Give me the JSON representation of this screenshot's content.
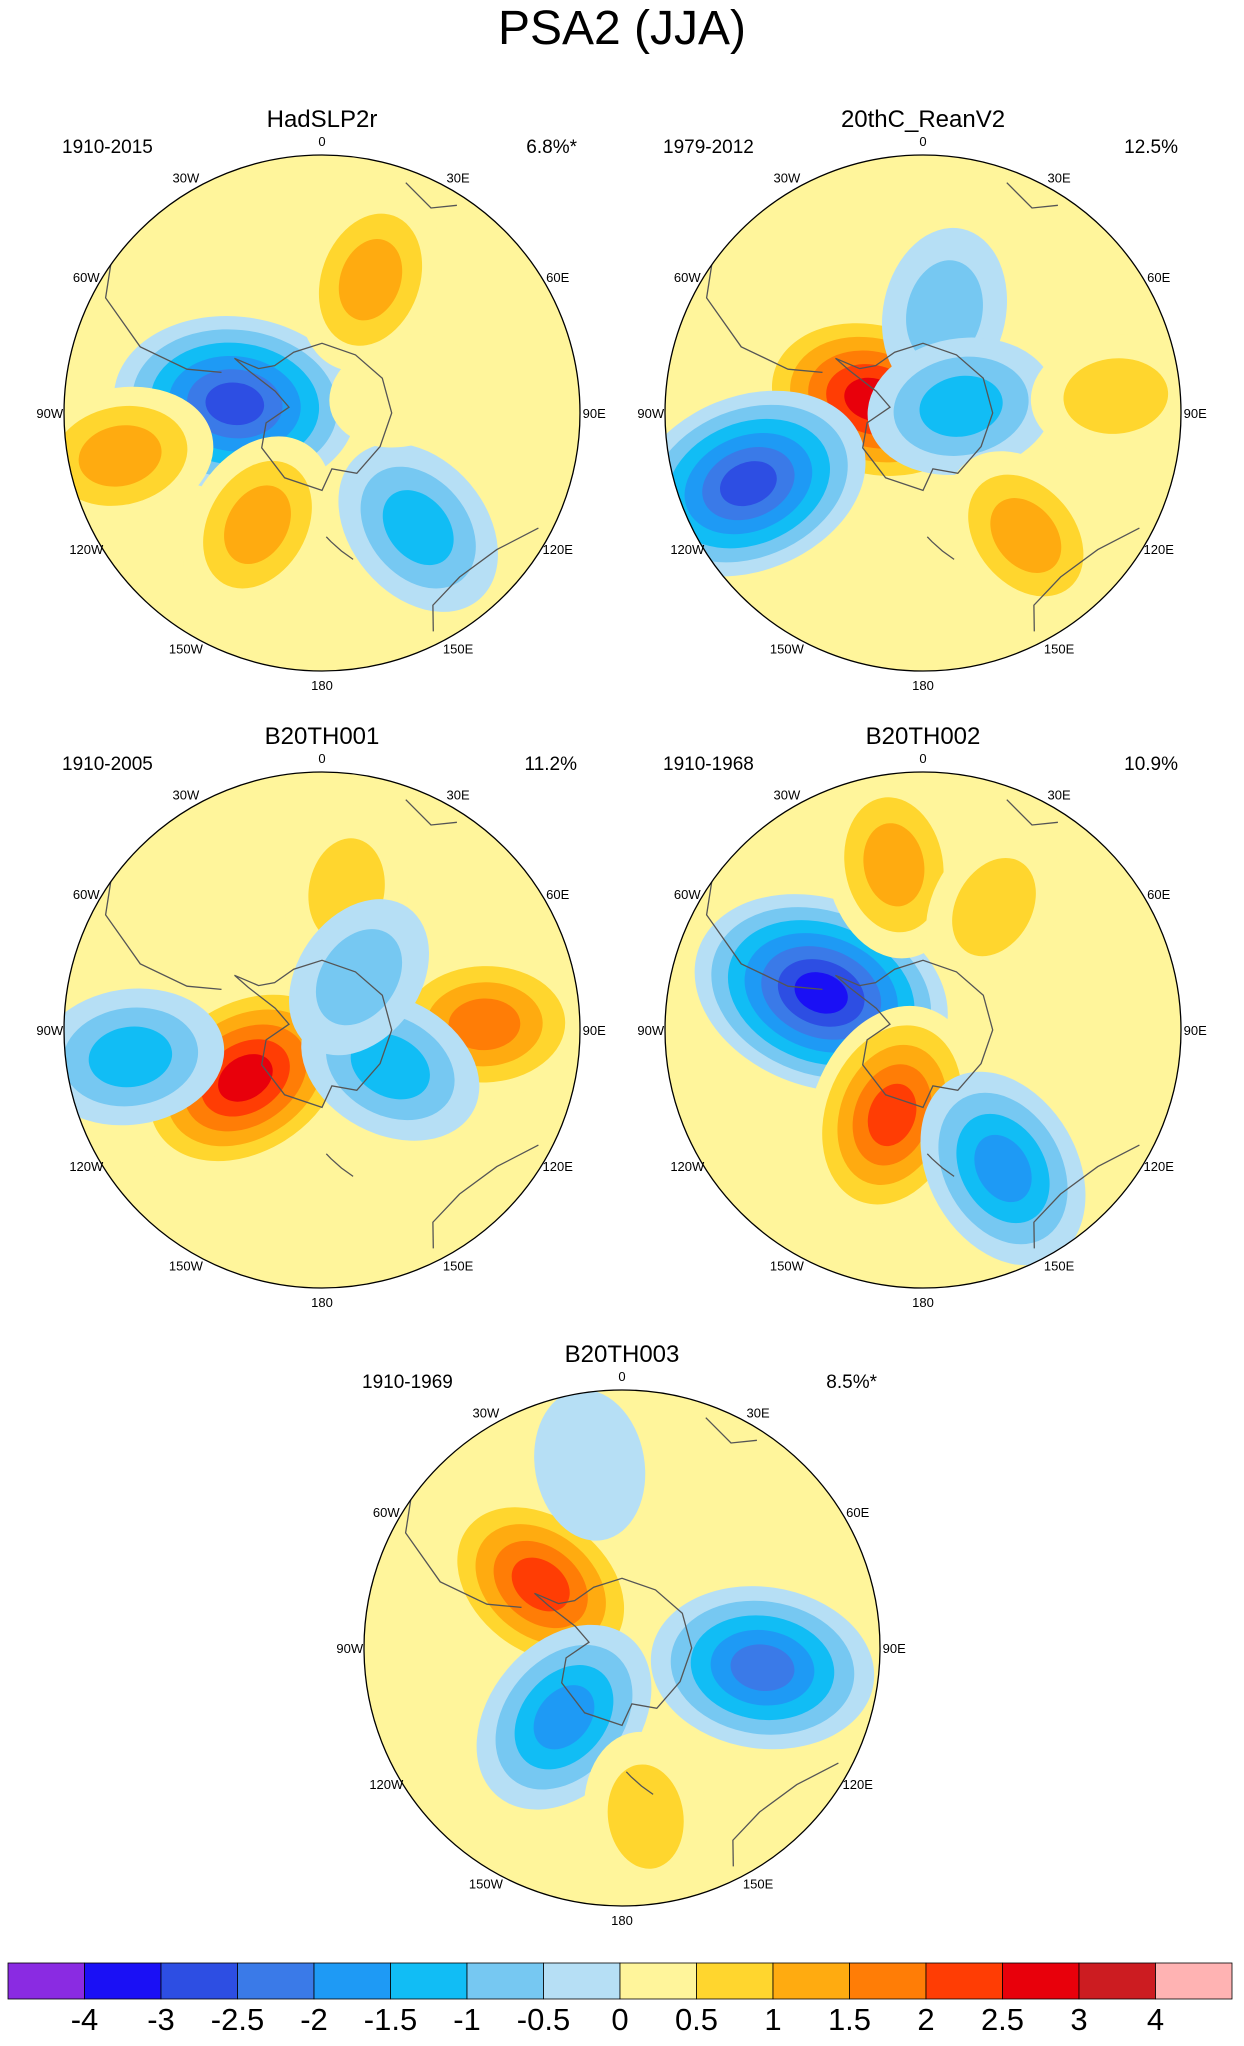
{
  "chart_data": {
    "type": "heatmap",
    "projection": "south polar stereographic",
    "title": "PSA2 (JJA)",
    "longitude_labels": [
      "0",
      "30E",
      "60E",
      "90E",
      "120E",
      "150E",
      "180",
      "150W",
      "120W",
      "90W",
      "60W",
      "30W"
    ],
    "panels": [
      {
        "title": "HadSLP2r",
        "period": "1910-2015",
        "variance": "6.8%*",
        "anomalies": [
          {
            "lon": -84,
            "colat": 0.34,
            "value": -3.0
          },
          {
            "lon": 20,
            "colat": 0.55,
            "value": 1.5
          },
          {
            "lon": -102,
            "colat": 0.8,
            "value": 1.5
          },
          {
            "lon": -150,
            "colat": 0.5,
            "value": 1.5
          },
          {
            "lon": 140,
            "colat": 0.58,
            "value": -1.5
          },
          {
            "lon": 75,
            "colat": 0.33,
            "value": 0.5
          }
        ]
      },
      {
        "title": "20thC_ReanV2",
        "period": "1979-2012",
        "variance": "12.5%",
        "anomalies": [
          {
            "lon": -75,
            "colat": 0.2,
            "value": 3.0
          },
          {
            "lon": -112,
            "colat": 0.73,
            "value": -3.0
          },
          {
            "lon": 12,
            "colat": 0.4,
            "value": -1.0
          },
          {
            "lon": 80,
            "colat": 0.15,
            "value": -1.5
          },
          {
            "lon": 85,
            "colat": 0.75,
            "value": 1.0
          },
          {
            "lon": 140,
            "colat": 0.62,
            "value": 1.5
          }
        ]
      },
      {
        "title": "B20TH001",
        "period": "1910-2005",
        "variance": "11.2%",
        "anomalies": [
          {
            "lon": -122,
            "colat": 0.35,
            "value": 3.0
          },
          {
            "lon": -98,
            "colat": 0.75,
            "value": -1.5
          },
          {
            "lon": 88,
            "colat": 0.63,
            "value": 2.0
          },
          {
            "lon": 118,
            "colat": 0.3,
            "value": -1.5
          },
          {
            "lon": 10,
            "colat": 0.55,
            "value": 1.0
          },
          {
            "lon": 35,
            "colat": 0.25,
            "value": -1.0
          }
        ]
      },
      {
        "title": "B20TH002",
        "period": "1910-1968",
        "variance": "10.9%",
        "anomalies": [
          {
            "lon": -70,
            "colat": 0.42,
            "value": -3.5
          },
          {
            "lon": -160,
            "colat": 0.35,
            "value": 2.5
          },
          {
            "lon": 150,
            "colat": 0.62,
            "value": -2.0
          },
          {
            "lon": -10,
            "colat": 0.65,
            "value": 1.5
          },
          {
            "lon": 30,
            "colat": 0.55,
            "value": 1.0
          }
        ]
      },
      {
        "title": "B20TH003",
        "period": "1910-1969",
        "variance": "8.5%*",
        "anomalies": [
          {
            "lon": -52,
            "colat": 0.4,
            "value": 2.5
          },
          {
            "lon": -140,
            "colat": 0.35,
            "value": -2.0
          },
          {
            "lon": 98,
            "colat": 0.55,
            "value": -2.5
          },
          {
            "lon": 172,
            "colat": 0.66,
            "value": 1.0
          },
          {
            "lon": -10,
            "colat": 0.72,
            "value": -0.5
          }
        ]
      }
    ],
    "colorbar": {
      "labels": [
        "-4",
        "-3",
        "-2.5",
        "-2",
        "-1.5",
        "-1",
        "-0.5",
        "0",
        "0.5",
        "1",
        "1.5",
        "2",
        "2.5",
        "3",
        "4"
      ],
      "colors": [
        "#8a2be2",
        "#1a10f5",
        "#2d4ee3",
        "#3a7ae8",
        "#1e9af5",
        "#11bdf5",
        "#76c8f2",
        "#b6dff5",
        "#fff59b",
        "#ffd62e",
        "#ffab10",
        "#ff7d06",
        "#ff3d04",
        "#e8000b",
        "#cc1c21",
        "#ffb3b3"
      ]
    }
  }
}
